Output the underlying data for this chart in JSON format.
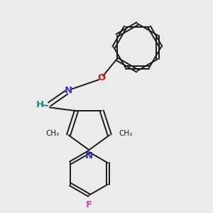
{
  "bg_color": "#ebebeb",
  "bond_color": "#1a1a1a",
  "n_color": "#3333cc",
  "o_color": "#cc2200",
  "f_color": "#cc44aa",
  "h_color": "#228888",
  "lw": 1.4,
  "dbo": 0.008,
  "xlim": [
    0.0,
    1.0
  ],
  "ylim": [
    0.0,
    1.0
  ]
}
